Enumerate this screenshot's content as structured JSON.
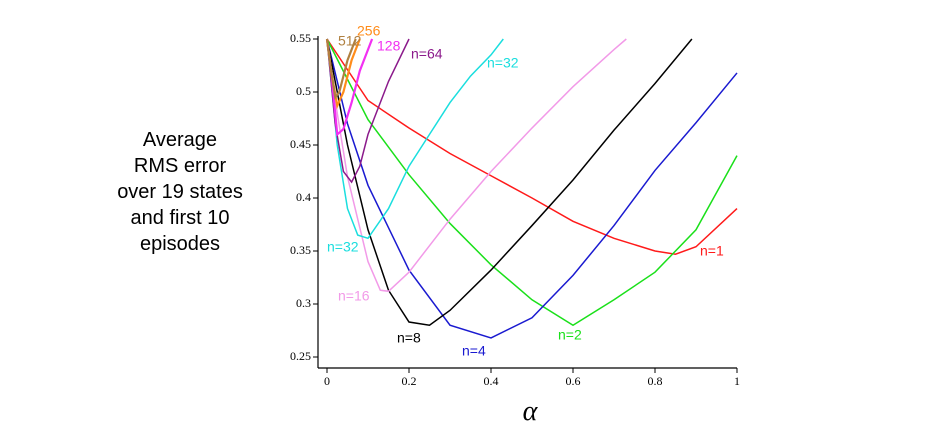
{
  "chart_data": {
    "type": "line",
    "ylabel_lines": [
      "Average",
      "RMS error",
      "over 19 states",
      "and first 10",
      "episodes"
    ],
    "xlabel": "α",
    "xlim": [
      0,
      1
    ],
    "xticks": [
      0,
      0.2,
      0.4,
      0.6,
      0.8,
      1
    ],
    "ylim": [
      0.25,
      0.55
    ],
    "yticks": [
      0.25,
      0.3,
      0.35,
      0.4,
      0.45,
      0.5,
      0.55
    ],
    "series": [
      {
        "name": "n=1",
        "color": "#ff1a1a",
        "x": [
          0,
          0.1,
          0.2,
          0.3,
          0.4,
          0.5,
          0.6,
          0.7,
          0.8,
          0.85,
          0.9,
          1
        ],
        "values": [
          0.55,
          0.492,
          0.466,
          0.442,
          0.421,
          0.4,
          0.378,
          0.362,
          0.35,
          0.347,
          0.354,
          0.39
        ]
      },
      {
        "name": "n=2",
        "color": "#1ae01a",
        "x": [
          0,
          0.1,
          0.2,
          0.3,
          0.4,
          0.5,
          0.6,
          0.7,
          0.8,
          0.9,
          1
        ],
        "values": [
          0.55,
          0.474,
          0.422,
          0.376,
          0.337,
          0.304,
          0.28,
          0.304,
          0.33,
          0.37,
          0.44
        ]
      },
      {
        "name": "n=4",
        "color": "#1a1ad0",
        "x": [
          0,
          0.05,
          0.1,
          0.2,
          0.3,
          0.4,
          0.5,
          0.6,
          0.7,
          0.8,
          0.9,
          1
        ],
        "values": [
          0.55,
          0.47,
          0.412,
          0.332,
          0.28,
          0.268,
          0.287,
          0.327,
          0.374,
          0.426,
          0.471,
          0.518
        ]
      },
      {
        "name": "n=8",
        "color": "#000000",
        "x": [
          0,
          0.05,
          0.1,
          0.15,
          0.2,
          0.25,
          0.3,
          0.4,
          0.5,
          0.6,
          0.7,
          0.8,
          0.89
        ],
        "values": [
          0.55,
          0.45,
          0.37,
          0.313,
          0.283,
          0.28,
          0.294,
          0.332,
          0.374,
          0.417,
          0.464,
          0.508,
          0.55
        ]
      },
      {
        "name": "n=16",
        "color": "#f29ae8",
        "x": [
          0,
          0.025,
          0.05,
          0.1,
          0.13,
          0.15,
          0.2,
          0.3,
          0.4,
          0.5,
          0.6,
          0.7,
          0.73
        ],
        "values": [
          0.55,
          0.48,
          0.42,
          0.34,
          0.313,
          0.312,
          0.33,
          0.38,
          0.425,
          0.466,
          0.505,
          0.54,
          0.55
        ]
      },
      {
        "name": "n=32",
        "color": "#1adede",
        "x": [
          0,
          0.025,
          0.05,
          0.075,
          0.1,
          0.15,
          0.2,
          0.25,
          0.3,
          0.35,
          0.4,
          0.43
        ],
        "values": [
          0.55,
          0.45,
          0.39,
          0.365,
          0.362,
          0.39,
          0.43,
          0.46,
          0.49,
          0.515,
          0.535,
          0.55
        ]
      },
      {
        "name": "n=64",
        "color": "#8b1a8b",
        "x": [
          0,
          0.02,
          0.04,
          0.06,
          0.08,
          0.1,
          0.15,
          0.2
        ],
        "values": [
          0.55,
          0.47,
          0.425,
          0.415,
          0.43,
          0.46,
          0.51,
          0.55
        ]
      },
      {
        "name": "128",
        "color": "#f230f2",
        "x": [
          0,
          0.01,
          0.025,
          0.04,
          0.06,
          0.08,
          0.11
        ],
        "values": [
          0.55,
          0.52,
          0.46,
          0.465,
          0.49,
          0.52,
          0.55
        ]
      },
      {
        "name": "256",
        "color": "#ff8c1a",
        "x": [
          0,
          0.01,
          0.025,
          0.04,
          0.06,
          0.08
        ],
        "values": [
          0.55,
          0.52,
          0.487,
          0.5,
          0.53,
          0.55
        ]
      },
      {
        "name": "512",
        "color": "#b08040",
        "x": [
          0,
          0.01,
          0.02,
          0.03,
          0.05,
          0.07
        ],
        "values": [
          0.55,
          0.52,
          0.495,
          0.5,
          0.53,
          0.55
        ]
      }
    ]
  }
}
